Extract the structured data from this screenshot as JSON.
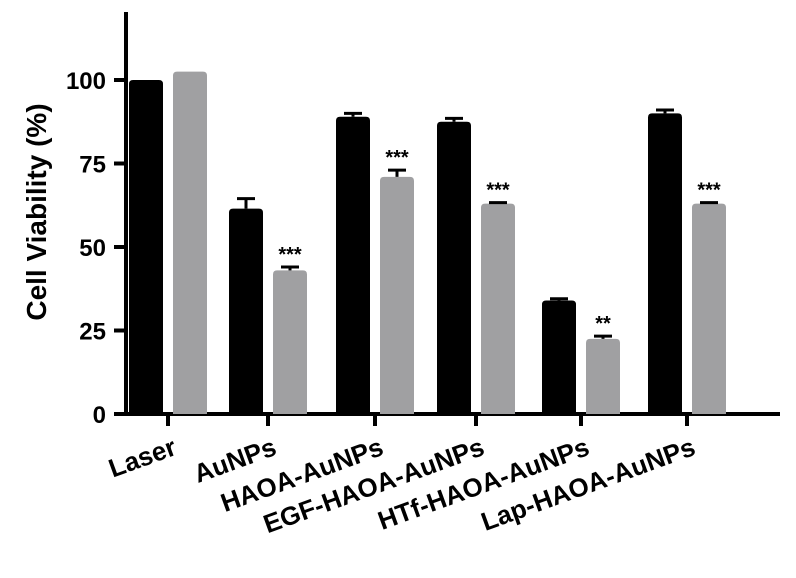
{
  "chart_data": {
    "type": "bar",
    "title": "",
    "xlabel": "",
    "ylabel": "Cell Viability (%)",
    "ylim": [
      0,
      120
    ],
    "yticks": [
      0,
      25,
      50,
      75,
      100
    ],
    "grid": false,
    "categories": [
      "Laser",
      "AuNPs",
      "HAOA-AuNPs",
      "EGF-HAOA-AuNPs",
      "HTf-HAOA-AuNPs",
      "Lap-HAOA-AuNPs"
    ],
    "series": [
      {
        "color": "#000000",
        "values": [
          100,
          61.5,
          89,
          87.5,
          34,
          90
        ],
        "errors": [
          0,
          3,
          1,
          1,
          0.5,
          1
        ],
        "significance": [
          "",
          "",
          "",
          "",
          "",
          ""
        ]
      },
      {
        "color": "#a0a0a2",
        "values": [
          102.5,
          43,
          71,
          63,
          22.5,
          63
        ],
        "errors": [
          0,
          1,
          2,
          0.3,
          0.8,
          0.3
        ],
        "significance": [
          "",
          "***",
          "***",
          "***",
          "**",
          "***"
        ]
      }
    ]
  }
}
